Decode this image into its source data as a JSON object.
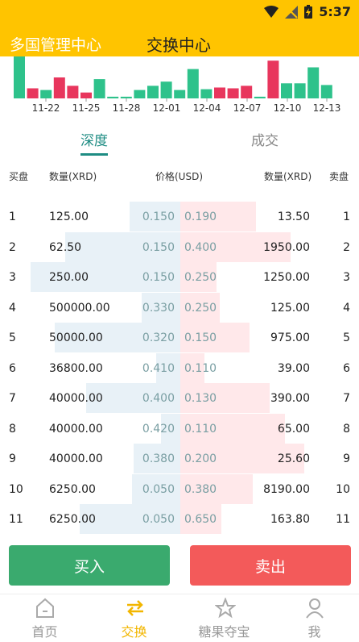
{
  "status_bar": {
    "time": "5:37"
  },
  "header": {
    "left_title": "多国管理中心",
    "center_title": "交换中心"
  },
  "chart_data": {
    "type": "bar",
    "x_tick_labels": [
      "11-22",
      "11-25",
      "11-28",
      "12-01",
      "12-04",
      "12-07",
      "12-10",
      "12-13"
    ],
    "values": [
      50,
      12,
      10,
      25,
      15,
      7,
      23,
      2,
      2,
      10,
      15,
      20,
      10,
      35,
      11,
      13,
      12,
      15,
      2,
      45,
      18,
      18,
      37,
      16
    ],
    "highlight_colors": [
      "#2ec28b",
      "#e8365d"
    ],
    "bar_colors": [
      "green",
      "red",
      "green",
      "red",
      "red",
      "red",
      "green",
      "green",
      "green",
      "green",
      "green",
      "green",
      "green",
      "green",
      "green",
      "red",
      "red",
      "red",
      "green",
      "red",
      "green",
      "green",
      "green",
      "green"
    ]
  },
  "tabs": [
    {
      "label": "深度",
      "active": true
    },
    {
      "label": "成交",
      "active": false
    }
  ],
  "column_headers": {
    "buy": "买盘",
    "buy_qty": "数量(XRD)",
    "price": "价格(USD)",
    "sell_qty": "数量(XRD)",
    "sell": "卖盘"
  },
  "order_book": [
    {
      "idx": "1",
      "buy_qty": "125.00",
      "buy_price": "0.150",
      "sell_price": "0.190",
      "sell_qty": "13.50",
      "buy_depth": 0.34,
      "sell_depth": 0.5
    },
    {
      "idx": "2",
      "buy_qty": "62.50",
      "buy_price": "0.150",
      "sell_price": "0.400",
      "sell_qty": "1950.00",
      "buy_depth": 0.77,
      "sell_depth": 0.73
    },
    {
      "idx": "3",
      "buy_qty": "250.00",
      "buy_price": "0.150",
      "sell_price": "0.250",
      "sell_qty": "1250.00",
      "buy_depth": 1.0,
      "sell_depth": 0.24
    },
    {
      "idx": "4",
      "buy_qty": "500000.00",
      "buy_price": "0.330",
      "sell_price": "0.250",
      "sell_qty": "125.00",
      "buy_depth": 0.26,
      "sell_depth": 0.26
    },
    {
      "idx": "5",
      "buy_qty": "50000.00",
      "buy_price": "0.320",
      "sell_price": "0.150",
      "sell_qty": "975.00",
      "buy_depth": 0.84,
      "sell_depth": 0.46
    },
    {
      "idx": "6",
      "buy_qty": "36800.00",
      "buy_price": "0.410",
      "sell_price": "0.110",
      "sell_qty": "39.00",
      "buy_depth": 0.16,
      "sell_depth": 0.16
    },
    {
      "idx": "7",
      "buy_qty": "40000.00",
      "buy_price": "0.400",
      "sell_price": "0.130",
      "sell_qty": "390.00",
      "buy_depth": 0.63,
      "sell_depth": 0.59
    },
    {
      "idx": "8",
      "buy_qty": "40000.00",
      "buy_price": "0.420",
      "sell_price": "0.110",
      "sell_qty": "65.00",
      "buy_depth": 0.13,
      "sell_depth": 0.69
    },
    {
      "idx": "9",
      "buy_qty": "40000.00",
      "buy_price": "0.380",
      "sell_price": "0.200",
      "sell_qty": "25.60",
      "buy_depth": 0.31,
      "sell_depth": 0.82
    },
    {
      "idx": "10",
      "buy_qty": "6250.00",
      "buy_price": "0.050",
      "sell_price": "0.380",
      "sell_qty": "8190.00",
      "buy_depth": 0.32,
      "sell_depth": 0.48
    },
    {
      "idx": "11",
      "buy_qty": "6250.00",
      "buy_price": "0.050",
      "sell_price": "0.650",
      "sell_qty": "163.80",
      "buy_depth": 0.67,
      "sell_depth": 0.27
    }
  ],
  "actions": {
    "buy_label": "买入",
    "sell_label": "卖出"
  },
  "nav": [
    {
      "label": "首页",
      "icon": "home-icon",
      "active": false
    },
    {
      "label": "交换",
      "icon": "exchange-icon",
      "active": true
    },
    {
      "label": "糖果夺宝",
      "icon": "star-icon",
      "active": false
    },
    {
      "label": "我",
      "icon": "person-icon",
      "active": false
    }
  ]
}
